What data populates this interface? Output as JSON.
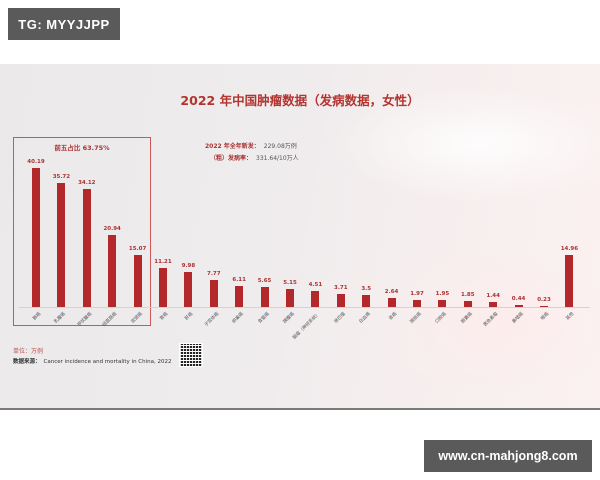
{
  "watermarks": {
    "top_left": "TG: MYYJJPP",
    "bottom_right": "www.cn-mahjong8.com"
  },
  "header": {
    "title": "2022 年中国肿瘤数据（发病数据，女性）"
  },
  "stats": {
    "new_cases_label": "2022 年全年新发：",
    "new_cases_value": "229.08万例",
    "rate_label": "（粗）发病率：",
    "rate_value": "331.64/10万人"
  },
  "top5": {
    "label": "前五占比 63.75%"
  },
  "footer": {
    "unit": "单位：万例",
    "source_label": "数据来源：",
    "source_value": "Cancer incidence and mortality in China, 2022"
  },
  "colors": {
    "bar": "#b3282a",
    "accent": "#b3332f",
    "badge_bg": "#5a5a5a"
  },
  "chart_data": {
    "type": "bar",
    "title": "2022 年中国肿瘤数据（发病数据，女性）",
    "xlabel": "",
    "ylabel": "单位：万例",
    "categories": [
      "肺癌",
      "乳腺癌",
      "甲状腺癌",
      "结直肠癌",
      "宫颈癌",
      "胃癌",
      "肝癌",
      "子宫体癌",
      "卵巢癌",
      "食管癌",
      "胰腺癌",
      "脑瘤（神经系统）",
      "淋巴瘤",
      "白血病",
      "肾癌",
      "膀胱癌",
      "口腔癌",
      "胆囊癌",
      "黑色素瘤",
      "鼻咽癌",
      "喉癌",
      "其他"
    ],
    "values": [
      40.19,
      35.72,
      34.12,
      20.94,
      15.07,
      11.21,
      9.98,
      7.77,
      6.11,
      5.65,
      5.15,
      4.51,
      3.71,
      3.5,
      2.64,
      1.97,
      1.95,
      1.85,
      1.44,
      0.44,
      0.23,
      14.96
    ],
    "value_labels": [
      "40.19",
      "35.72",
      "34.12",
      "20.94",
      "15.07",
      "11.21",
      "9.98",
      "7.77",
      "6.11",
      "5.65",
      "5.15",
      "4.51",
      "3.71",
      "3.5",
      "2.64",
      "1.97",
      "1.95",
      "1.85",
      "1.44",
      "0.44",
      "0.23",
      "14.96"
    ],
    "annotations": [
      "前五占比 63.75%",
      "2022 年全年新发：229.08万例",
      "（粗）发病率：331.64/10万人"
    ],
    "grid": false,
    "legend": null,
    "ylim": [
      0,
      45
    ]
  }
}
